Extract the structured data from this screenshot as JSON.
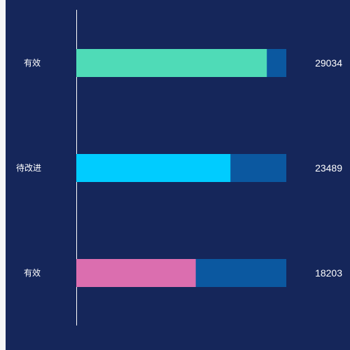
{
  "chart_data": {
    "type": "bar",
    "orientation": "horizontal",
    "stacked_background": true,
    "categories": [
      "有效",
      "待改进",
      "有效"
    ],
    "values": [
      29034,
      23489,
      18203
    ],
    "max": 32000,
    "grid": false,
    "legend": "none",
    "colors": {
      "background": "#15265a",
      "track": "#0b58a0",
      "axis": "#ffffff",
      "bars": [
        "#4fdbb7",
        "#00ccff",
        "#db6eaf"
      ]
    }
  }
}
